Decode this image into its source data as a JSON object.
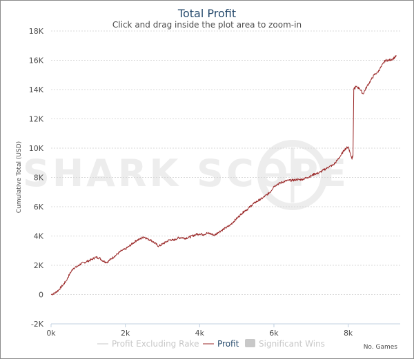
{
  "chart_data": {
    "type": "line",
    "title": "Total Profit",
    "subtitle": "Click and drag inside the plot area to zoom-in",
    "ylabel": "Cumulative Total (USD)",
    "xlabel": "No. Games",
    "xlim": [
      0,
      9400
    ],
    "ylim": [
      -2000,
      18000
    ],
    "x_ticks": [
      0,
      2000,
      4000,
      6000,
      8000
    ],
    "x_tick_labels": [
      "0k",
      "2k",
      "4k",
      "6k",
      "8k"
    ],
    "y_ticks": [
      -2000,
      0,
      2000,
      4000,
      6000,
      8000,
      10000,
      12000,
      14000,
      16000,
      18000
    ],
    "y_tick_labels": [
      "-2K",
      "0",
      "2K",
      "4K",
      "6K",
      "8K",
      "10K",
      "12K",
      "14K",
      "16K",
      "18K"
    ],
    "grid": true,
    "legend_position": "bottom",
    "legend": [
      {
        "label": "Profit Excluding Rake",
        "color": "#c8c8c8",
        "kind": "line",
        "active": false
      },
      {
        "label": "Profit",
        "color": "#9b2a2a",
        "kind": "line",
        "active": true
      },
      {
        "label": "Significant Wins",
        "color": "#c8c8c8",
        "kind": "box",
        "active": false
      }
    ],
    "watermark": "SHARK SCOPE",
    "series": [
      {
        "name": "Profit",
        "color": "#9b2a2a",
        "x": [
          0,
          100,
          200,
          300,
          400,
          500,
          600,
          700,
          800,
          900,
          1000,
          1100,
          1200,
          1300,
          1400,
          1500,
          1600,
          1700,
          1800,
          1900,
          2000,
          2100,
          2200,
          2300,
          2400,
          2500,
          2600,
          2700,
          2800,
          2900,
          3000,
          3100,
          3200,
          3300,
          3400,
          3500,
          3600,
          3700,
          3800,
          3900,
          4000,
          4100,
          4200,
          4300,
          4400,
          4500,
          4600,
          4700,
          4800,
          4900,
          5000,
          5100,
          5200,
          5300,
          5400,
          5500,
          5600,
          5700,
          5800,
          5900,
          6000,
          6100,
          6200,
          6300,
          6400,
          6500,
          6600,
          6700,
          6800,
          6900,
          7000,
          7100,
          7200,
          7300,
          7400,
          7500,
          7600,
          7700,
          7800,
          7900,
          8000,
          8050,
          8100,
          8130,
          8150,
          8200,
          8300,
          8400,
          8500,
          8600,
          8700,
          8800,
          8900,
          9000,
          9100,
          9200,
          9300
        ],
        "y": [
          0,
          100,
          300,
          600,
          900,
          1400,
          1800,
          1900,
          2100,
          2200,
          2300,
          2400,
          2550,
          2500,
          2300,
          2200,
          2400,
          2600,
          2800,
          3000,
          3100,
          3300,
          3500,
          3700,
          3800,
          3950,
          3800,
          3700,
          3500,
          3300,
          3450,
          3600,
          3750,
          3700,
          3850,
          3900,
          3850,
          3900,
          4000,
          4100,
          4150,
          4100,
          4200,
          4150,
          4050,
          4250,
          4400,
          4550,
          4700,
          4950,
          5200,
          5450,
          5700,
          5850,
          6100,
          6300,
          6450,
          6600,
          6800,
          7000,
          7400,
          7550,
          7650,
          7750,
          7800,
          7800,
          7850,
          7850,
          7900,
          8000,
          8100,
          8250,
          8300,
          8450,
          8600,
          8750,
          8850,
          9150,
          9500,
          9900,
          10100,
          9700,
          9300,
          9500,
          14000,
          14200,
          14100,
          13700,
          14200,
          14600,
          15000,
          15200,
          15600,
          16000,
          16000,
          16100,
          16300
        ]
      }
    ]
  }
}
